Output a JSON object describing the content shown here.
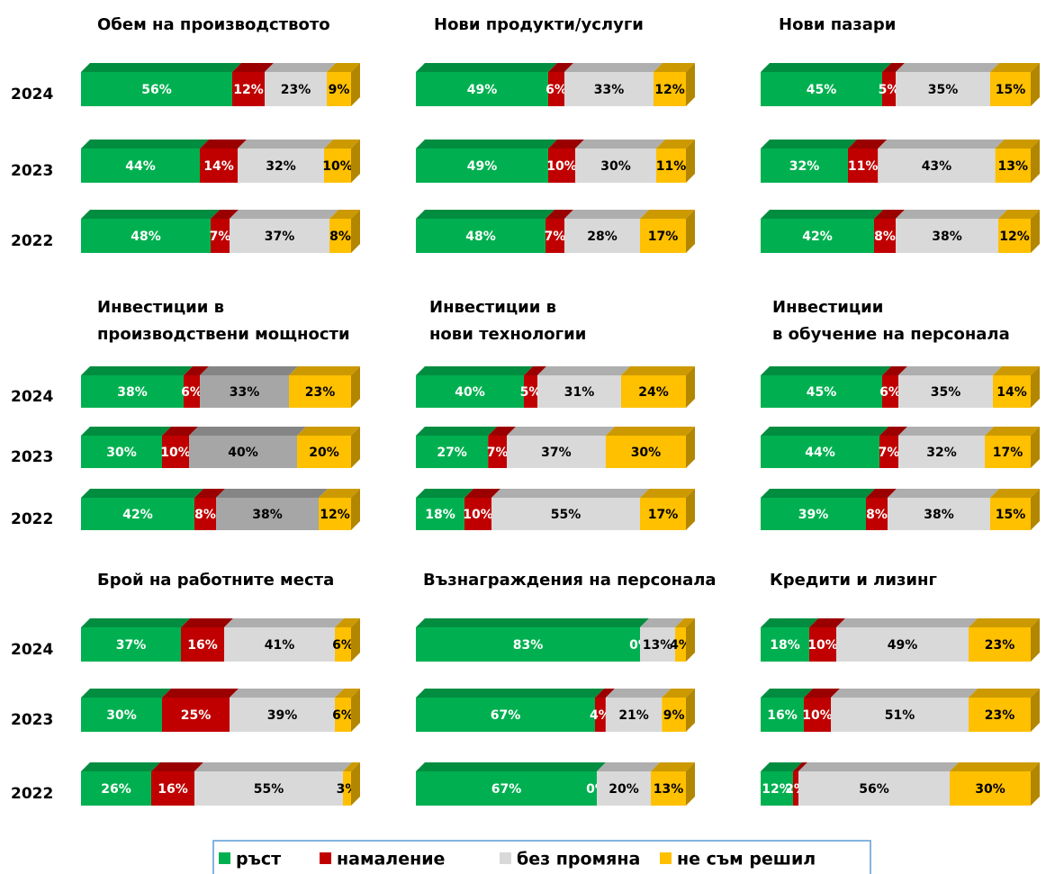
{
  "chart_data": [
    {
      "type": "bar",
      "orientation": "horizontal",
      "stacked": true,
      "title": [
        "Обем на производството"
      ],
      "categories": [
        "2024",
        "2023",
        "2022"
      ],
      "series": [
        {
          "name": "ръст",
          "color": "#00b050",
          "values": [
            56,
            44,
            48
          ],
          "value_labels": [
            "56%",
            "44%",
            "48%"
          ]
        },
        {
          "name": "намаление",
          "color": "#c00000",
          "values": [
            12,
            14,
            7
          ],
          "value_labels": [
            "12%",
            "14%",
            "7%"
          ]
        },
        {
          "name": "без промяна",
          "color": "#d9d9d9",
          "values": [
            23,
            32,
            37
          ],
          "value_labels": [
            "23%",
            "32%",
            "37%"
          ]
        },
        {
          "name": "не съм решил",
          "color": "#ffc000",
          "values": [
            9,
            10,
            8
          ],
          "value_labels": [
            "9%",
            "10%",
            "8%"
          ]
        }
      ]
    },
    {
      "type": "bar",
      "orientation": "horizontal",
      "stacked": true,
      "title": [
        "Нови продукти/услуги"
      ],
      "categories": [
        "2024",
        "2023",
        "2022"
      ],
      "series": [
        {
          "name": "ръст",
          "color": "#00b050",
          "values": [
            49,
            49,
            48
          ],
          "value_labels": [
            "49%",
            "49%",
            "48%"
          ]
        },
        {
          "name": "намаление",
          "color": "#c00000",
          "values": [
            6,
            10,
            7
          ],
          "value_labels": [
            "6%",
            "10%",
            "7%"
          ]
        },
        {
          "name": "без промяна",
          "color": "#d9d9d9",
          "values": [
            33,
            30,
            28
          ],
          "value_labels": [
            "33%",
            "30%",
            "28%"
          ]
        },
        {
          "name": "не съм решил",
          "color": "#ffc000",
          "values": [
            12,
            11,
            17
          ],
          "value_labels": [
            "12%",
            "11%",
            "17%"
          ]
        }
      ]
    },
    {
      "type": "bar",
      "orientation": "horizontal",
      "stacked": true,
      "title": [
        "Нови пазари"
      ],
      "categories": [
        "2024",
        "2023",
        "2022"
      ],
      "series": [
        {
          "name": "ръст",
          "color": "#00b050",
          "values": [
            45,
            32,
            42
          ],
          "value_labels": [
            "45%",
            "32%",
            "42%"
          ]
        },
        {
          "name": "намаление",
          "color": "#c00000",
          "values": [
            5,
            11,
            8
          ],
          "value_labels": [
            "5%",
            "11%",
            "8%"
          ]
        },
        {
          "name": "без промяна",
          "color": "#d9d9d9",
          "values": [
            35,
            43,
            38
          ],
          "value_labels": [
            "35%",
            "43%",
            "38%"
          ]
        },
        {
          "name": "не съм решил",
          "color": "#ffc000",
          "values": [
            15,
            13,
            12
          ],
          "value_labels": [
            "15%",
            "13%",
            "12%"
          ]
        }
      ]
    },
    {
      "type": "bar",
      "orientation": "horizontal",
      "stacked": true,
      "title": [
        "Инвестиции в",
        "производствени мощности"
      ],
      "categories": [
        "2024",
        "2023",
        "2022"
      ],
      "series": [
        {
          "name": "ръст",
          "color": "#00b050",
          "values": [
            38,
            30,
            42
          ],
          "value_labels": [
            "38%",
            "30%",
            "42%"
          ]
        },
        {
          "name": "намаление",
          "color": "#c00000",
          "values": [
            6,
            10,
            8
          ],
          "value_labels": [
            "6%",
            "10%",
            "8%"
          ]
        },
        {
          "name": "без промяна",
          "color": "#a6a6a6",
          "values": [
            33,
            40,
            38
          ],
          "value_labels": [
            "33%",
            "40%",
            "38%"
          ]
        },
        {
          "name": "не съм решил",
          "color": "#ffc000",
          "values": [
            23,
            20,
            12
          ],
          "value_labels": [
            "23%",
            "20%",
            "12%"
          ]
        }
      ]
    },
    {
      "type": "bar",
      "orientation": "horizontal",
      "stacked": true,
      "title": [
        "Инвестиции в",
        "нови технологии"
      ],
      "categories": [
        "2024",
        "2023",
        "2022"
      ],
      "series": [
        {
          "name": "ръст",
          "color": "#00b050",
          "values": [
            40,
            27,
            18
          ],
          "value_labels": [
            "40%",
            "27%",
            "18%"
          ]
        },
        {
          "name": "намаление",
          "color": "#c00000",
          "values": [
            5,
            7,
            10
          ],
          "value_labels": [
            "5%",
            "7%",
            "10%"
          ]
        },
        {
          "name": "без промяна",
          "color": "#d9d9d9",
          "values": [
            31,
            37,
            55
          ],
          "value_labels": [
            "31%",
            "37%",
            "55%"
          ]
        },
        {
          "name": "не съм решил",
          "color": "#ffc000",
          "values": [
            24,
            30,
            17
          ],
          "value_labels": [
            "24%",
            "30%",
            "17%"
          ]
        }
      ]
    },
    {
      "type": "bar",
      "orientation": "horizontal",
      "stacked": true,
      "title": [
        "Инвестиции",
        "в обучение на персонала"
      ],
      "categories": [
        "2024",
        "2023",
        "2022"
      ],
      "series": [
        {
          "name": "ръст",
          "color": "#00b050",
          "values": [
            45,
            44,
            39
          ],
          "value_labels": [
            "45%",
            "44%",
            "39%"
          ]
        },
        {
          "name": "намаление",
          "color": "#c00000",
          "values": [
            6,
            7,
            8
          ],
          "value_labels": [
            "6%",
            "7%",
            "8%"
          ]
        },
        {
          "name": "без промяна",
          "color": "#d9d9d9",
          "values": [
            35,
            32,
            38
          ],
          "value_labels": [
            "35%",
            "32%",
            "38%"
          ]
        },
        {
          "name": "не съм решил",
          "color": "#ffc000",
          "values": [
            14,
            17,
            15
          ],
          "value_labels": [
            "14%",
            "17%",
            "15%"
          ]
        }
      ]
    },
    {
      "type": "bar",
      "orientation": "horizontal",
      "stacked": true,
      "title": [
        "Брой на работните места"
      ],
      "categories": [
        "2024",
        "2023",
        "2022"
      ],
      "series": [
        {
          "name": "ръст",
          "color": "#00b050",
          "values": [
            37,
            30,
            26
          ],
          "value_labels": [
            "37%",
            "30%",
            "26%"
          ]
        },
        {
          "name": "намаление",
          "color": "#c00000",
          "values": [
            16,
            25,
            16
          ],
          "value_labels": [
            "16%",
            "25%",
            "16%"
          ]
        },
        {
          "name": "без промяна",
          "color": "#d9d9d9",
          "values": [
            41,
            39,
            55
          ],
          "value_labels": [
            "41%",
            "39%",
            "55%"
          ]
        },
        {
          "name": "не съм решил",
          "color": "#ffc000",
          "values": [
            6,
            6,
            3
          ],
          "value_labels": [
            "6%",
            "6%",
            "3%"
          ]
        }
      ]
    },
    {
      "type": "bar",
      "orientation": "horizontal",
      "stacked": true,
      "title": [
        "Възнаграждения на персонала"
      ],
      "categories": [
        "2024",
        "2023",
        "2022"
      ],
      "series": [
        {
          "name": "ръст",
          "color": "#00b050",
          "values": [
            83,
            67,
            67
          ],
          "value_labels": [
            "83%",
            "67%",
            "67%"
          ]
        },
        {
          "name": "намаление",
          "color": "#c00000",
          "values": [
            0,
            4,
            0
          ],
          "value_labels": [
            "0%",
            "4%",
            "0%"
          ]
        },
        {
          "name": "без промяна",
          "color": "#d9d9d9",
          "values": [
            13,
            21,
            20
          ],
          "value_labels": [
            "13%",
            "21%",
            "20%"
          ]
        },
        {
          "name": "не съм решил",
          "color": "#ffc000",
          "values": [
            4,
            9,
            13
          ],
          "value_labels": [
            "4%",
            "9%",
            "13%"
          ]
        }
      ]
    },
    {
      "type": "bar",
      "orientation": "horizontal",
      "stacked": true,
      "title": [
        "Кредити и лизинг"
      ],
      "categories": [
        "2024",
        "2023",
        "2022"
      ],
      "series": [
        {
          "name": "ръст",
          "color": "#00b050",
          "values": [
            18,
            16,
            12
          ],
          "value_labels": [
            "18%",
            "16%",
            "12%"
          ]
        },
        {
          "name": "намаление",
          "color": "#c00000",
          "values": [
            10,
            10,
            2
          ],
          "value_labels": [
            "10%",
            "10%",
            "2%"
          ]
        },
        {
          "name": "без промяна",
          "color": "#d9d9d9",
          "values": [
            49,
            51,
            56
          ],
          "value_labels": [
            "49%",
            "51%",
            "56%"
          ]
        },
        {
          "name": "не съм решил",
          "color": "#ffc000",
          "values": [
            23,
            23,
            30
          ],
          "value_labels": [
            "23%",
            "23%",
            "30%"
          ]
        }
      ]
    }
  ]
}
